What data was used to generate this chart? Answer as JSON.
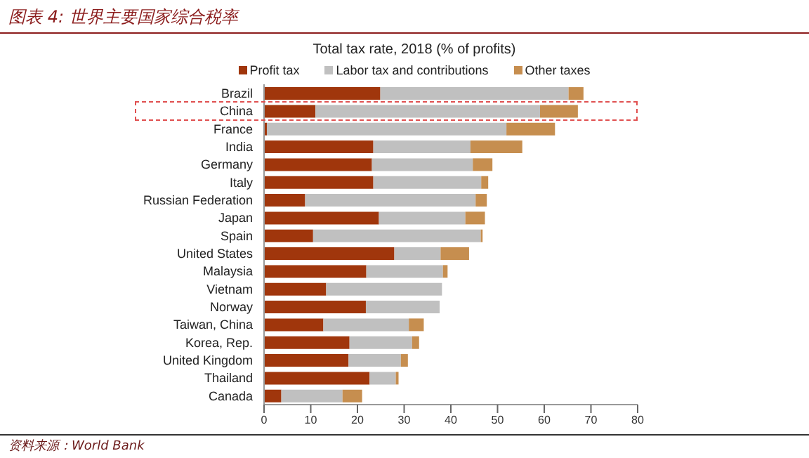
{
  "chart_data": {
    "type": "bar",
    "orientation": "horizontal",
    "stacked": true,
    "title": "图表 4: 世界主要国家综合税率",
    "subtitle": "Total tax rate, 2018 (% of profits)",
    "categories": [
      "Brazil",
      "China",
      "France",
      "India",
      "Germany",
      "Italy",
      "Russian Federation",
      "Japan",
      "Spain",
      "United States",
      "Malaysia",
      "Vietnam",
      "Norway",
      "Taiwan, China",
      "Korea, Rep.",
      "United Kingdom",
      "Thailand",
      "Canada"
    ],
    "series": [
      {
        "name": "Profit tax",
        "color": "#a0360c",
        "values": [
          24.9,
          11.0,
          0.6,
          23.4,
          23.1,
          23.4,
          8.8,
          24.6,
          10.5,
          27.9,
          21.9,
          13.3,
          21.8,
          12.7,
          18.3,
          18.1,
          22.6,
          3.7
        ]
      },
      {
        "name": "Labor tax and contributions",
        "color": "#c0c0c0",
        "values": [
          40.3,
          48.1,
          51.3,
          20.8,
          21.6,
          23.1,
          36.5,
          18.5,
          35.9,
          9.9,
          16.4,
          24.8,
          15.8,
          18.3,
          13.4,
          11.2,
          5.6,
          13.1
        ]
      },
      {
        "name": "Other taxes",
        "color": "#c68e4f",
        "values": [
          3.2,
          8.1,
          10.4,
          11.1,
          4.2,
          1.5,
          2.4,
          4.2,
          0.4,
          6.1,
          1.0,
          0,
          0,
          3.2,
          1.5,
          1.5,
          0.6,
          4.2
        ]
      }
    ],
    "xlim": [
      0,
      80
    ],
    "xticks": [
      0,
      10,
      20,
      30,
      40,
      50,
      60,
      70,
      80
    ],
    "grid": false,
    "legend": "top",
    "annotations": [
      "资料来源：World Bank"
    ]
  }
}
